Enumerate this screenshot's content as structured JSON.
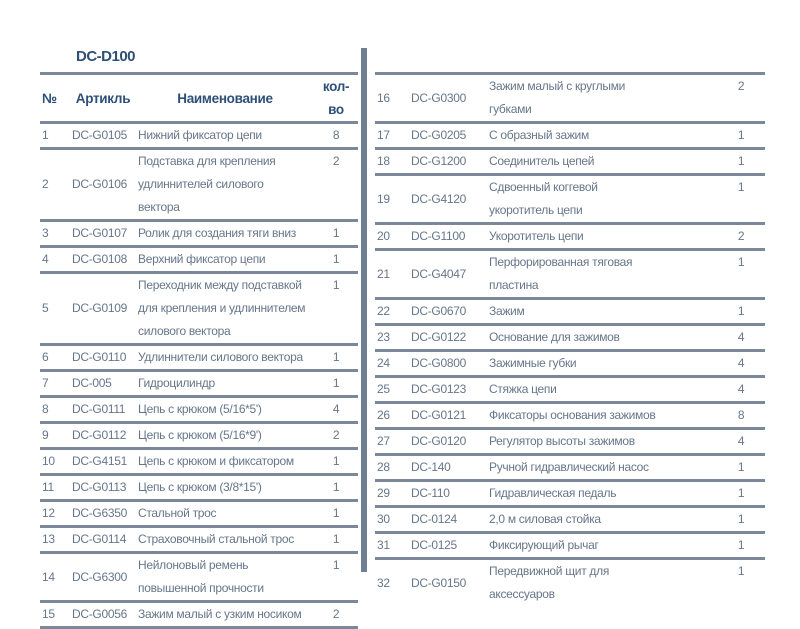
{
  "title": "DC-D100",
  "headers": {
    "no": "№",
    "article": "Артикль",
    "name": "Наименование",
    "qty": "кол-во"
  },
  "left_rows": [
    {
      "no": "1",
      "article": "DC-G0105",
      "name": "Нижний фиксатор цепи",
      "qty": "8"
    },
    {
      "no": "2",
      "article": "DC-G0106",
      "name": "Подставка для крепления\nудлиннителей силового\nвектора",
      "qty": "2"
    },
    {
      "no": "3",
      "article": "DC-G0107",
      "name": "Ролик для создания тяги вниз",
      "qty": "1"
    },
    {
      "no": "4",
      "article": "DC-G0108",
      "name": "Верхний фиксатор цепи",
      "qty": "1"
    },
    {
      "no": "5",
      "article": "DC-G0109",
      "name": "Переходник между подставкой\nдля крепления и удлиннителем\nсилового вектора",
      "qty": "1"
    },
    {
      "no": "6",
      "article": "DC-G0110",
      "name": "Удлиннители силового вектора",
      "qty": "1"
    },
    {
      "no": "7",
      "article": "DC-005",
      "name": "Гидроцилиндр",
      "qty": "1"
    },
    {
      "no": "8",
      "article": "DC-G0111",
      "name": "Цепь с крюком (5/16*5')",
      "qty": "4"
    },
    {
      "no": "9",
      "article": "DC-G0112",
      "name": "Цепь с крюком (5/16*9')",
      "qty": "2"
    },
    {
      "no": "10",
      "article": "DC-G4151",
      "name": "Цепь с крюком и фиксатором",
      "qty": "1"
    },
    {
      "no": "11",
      "article": "DC-G0113",
      "name": "Цепь с крюком (3/8*15')",
      "qty": "1"
    },
    {
      "no": "12",
      "article": "DC-G6350",
      "name": "Стальной трос",
      "qty": "1"
    },
    {
      "no": "13",
      "article": "DC-G0114",
      "name": "Страховочный стальной трос",
      "qty": "1"
    },
    {
      "no": "14",
      "article": "DC-G6300",
      "name": "Нейлоновый ремень\nповышенной прочности",
      "qty": "1"
    },
    {
      "no": "15",
      "article": "DC-G0056",
      "name": "Зажим малый с узким носиком",
      "qty": "2"
    }
  ],
  "right_rows": [
    {
      "no": "16",
      "article": "DC-G0300",
      "name": "Зажим малый с круглыми\nгубками",
      "qty": "2"
    },
    {
      "no": "17",
      "article": "DC-G0205",
      "name": "С образный зажим",
      "qty": "1"
    },
    {
      "no": "18",
      "article": "DC-G1200",
      "name": "Соединитель цепей",
      "qty": "1"
    },
    {
      "no": "19",
      "article": "DC-G4120",
      "name": "Сдвоенный коггевой\nукоротитель цепи",
      "qty": "1"
    },
    {
      "no": "20",
      "article": "DC-G1100",
      "name": "Укоротитель цепи",
      "qty": "2"
    },
    {
      "no": "21",
      "article": "DC-G4047",
      "name": "Перфорированная тяговая\nпластина",
      "qty": "1"
    },
    {
      "no": "22",
      "article": "DC-G0670",
      "name": "Зажим",
      "qty": "1"
    },
    {
      "no": "23",
      "article": "DC-G0122",
      "name": "Основание для зажимов",
      "qty": "4"
    },
    {
      "no": "24",
      "article": "DC-G0800",
      "name": "Зажимные губки",
      "qty": "4"
    },
    {
      "no": "25",
      "article": "DC-G0123",
      "name": "Стяжка цепи",
      "qty": "4"
    },
    {
      "no": "26",
      "article": "DC-G0121",
      "name": "Фиксаторы основания зажимов",
      "qty": "8"
    },
    {
      "no": "27",
      "article": "DC-G0120",
      "name": "Регулятор высоты зажимов",
      "qty": "4"
    },
    {
      "no": "28",
      "article": "DC-140",
      "name": "Ручной гидравлический насос",
      "qty": "1"
    },
    {
      "no": "29",
      "article": "DC-110",
      "name": "Гидравлическая педаль",
      "qty": "1"
    },
    {
      "no": "30",
      "article": "DC-0124",
      "name": "2,0 м силовая стойка",
      "qty": "1"
    },
    {
      "no": "31",
      "article": "DC-0125",
      "name": "Фиксирующий рычаг",
      "qty": "1"
    },
    {
      "no": "32",
      "article": "DC-G0150",
      "name": "Передвижной щит для\nаксессуаров",
      "qty": "1"
    }
  ]
}
